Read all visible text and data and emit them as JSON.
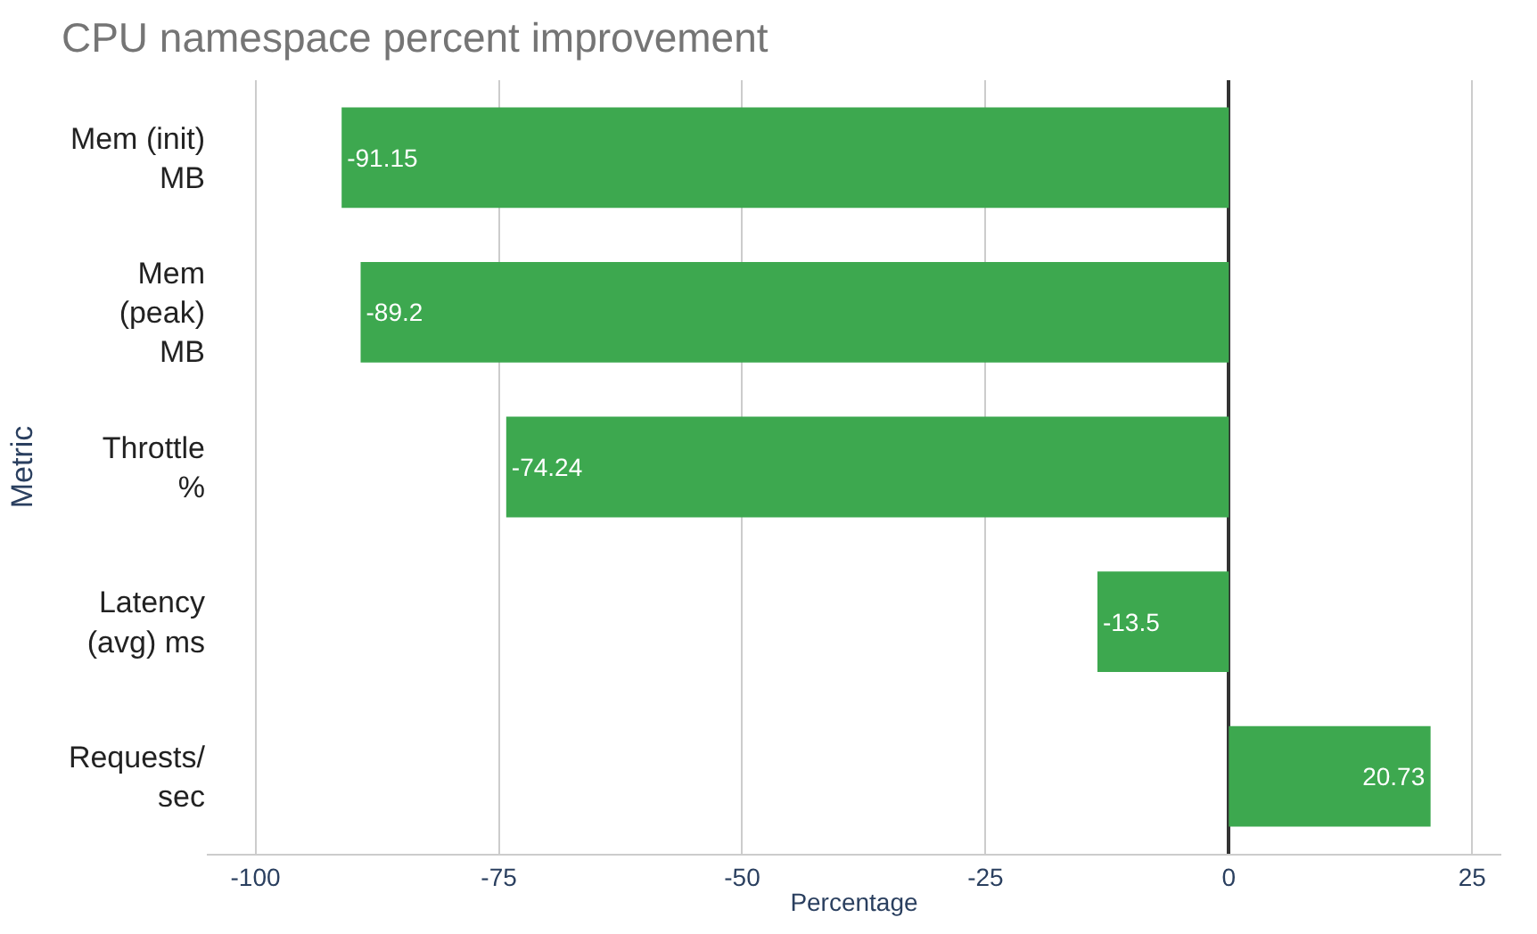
{
  "chart_data": {
    "type": "bar",
    "orientation": "horizontal",
    "title": "CPU namespace percent improvement",
    "xlabel": "Percentage",
    "ylabel": "Metric",
    "categories": [
      "Mem (init)\nMB",
      "Mem\n(peak)\nMB",
      "Throttle\n%",
      "Latency\n(avg) ms",
      "Requests/\nsec"
    ],
    "values": [
      -91.15,
      -89.2,
      -74.24,
      -13.5,
      20.73
    ],
    "color": "#3da84f",
    "data_labels": true,
    "xlim": [
      -105,
      28
    ],
    "xticks": [
      -100,
      -75,
      -50,
      -25,
      0,
      25
    ],
    "grid": "x"
  }
}
